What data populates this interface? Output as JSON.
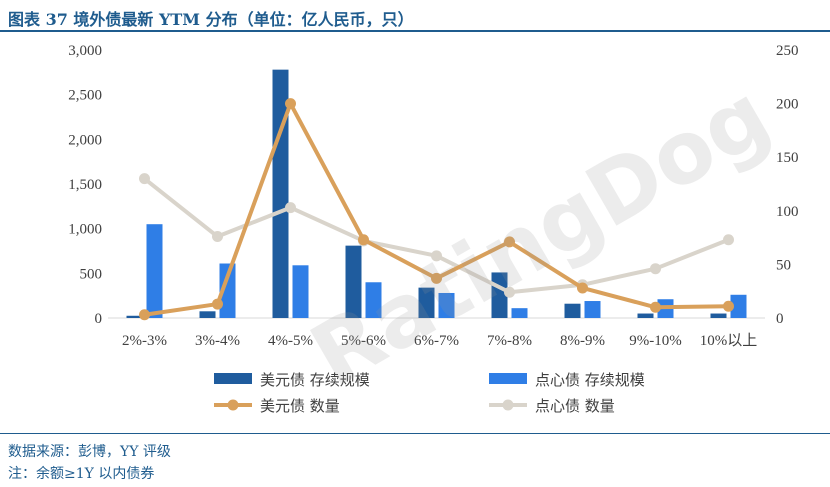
{
  "title": "图表 37 境外债最新 YTM 分布（单位：亿人民币，只）",
  "footer": {
    "source": "数据来源：彭博，YY 评级",
    "note": "注：余额≥1Y 以内债券"
  },
  "watermark": "RatingDog",
  "colors": {
    "usd_bar": "#1f5c9e",
    "cnh_bar": "#2f7ee6",
    "usd_line": "#d9a05b",
    "cnh_line": "#d9d4cb",
    "axis_text": "#404040"
  },
  "chart_data": {
    "type": "bar",
    "categories": [
      "2%-3%",
      "3%-4%",
      "4%-5%",
      "5%-6%",
      "6%-7%",
      "7%-8%",
      "8%-9%",
      "9%-10%",
      "10%以上"
    ],
    "left_axis": {
      "ylim": [
        0,
        3000
      ],
      "ticks": [
        "0",
        "500",
        "1,000",
        "1,500",
        "2,000",
        "2,500",
        "3,000"
      ]
    },
    "right_axis": {
      "ylim": [
        0,
        250
      ],
      "ticks": [
        "0",
        "50",
        "100",
        "150",
        "200",
        "250"
      ]
    },
    "series": [
      {
        "name": "美元债 存续规模",
        "kind": "bar",
        "axis": "left",
        "values": [
          25,
          75,
          2780,
          810,
          340,
          510,
          160,
          50,
          50
        ]
      },
      {
        "name": "点心债 存续规模",
        "kind": "bar",
        "axis": "left",
        "values": [
          1050,
          610,
          590,
          400,
          280,
          110,
          190,
          210,
          260
        ]
      },
      {
        "name": "美元债 数量",
        "kind": "line",
        "axis": "right",
        "values": [
          3,
          13,
          200,
          73,
          37,
          71,
          28,
          10,
          11
        ]
      },
      {
        "name": "点心债 数量",
        "kind": "line",
        "axis": "right",
        "values": [
          130,
          76,
          103,
          72,
          58,
          24,
          31,
          46,
          73
        ]
      }
    ],
    "legend": "bottom"
  }
}
